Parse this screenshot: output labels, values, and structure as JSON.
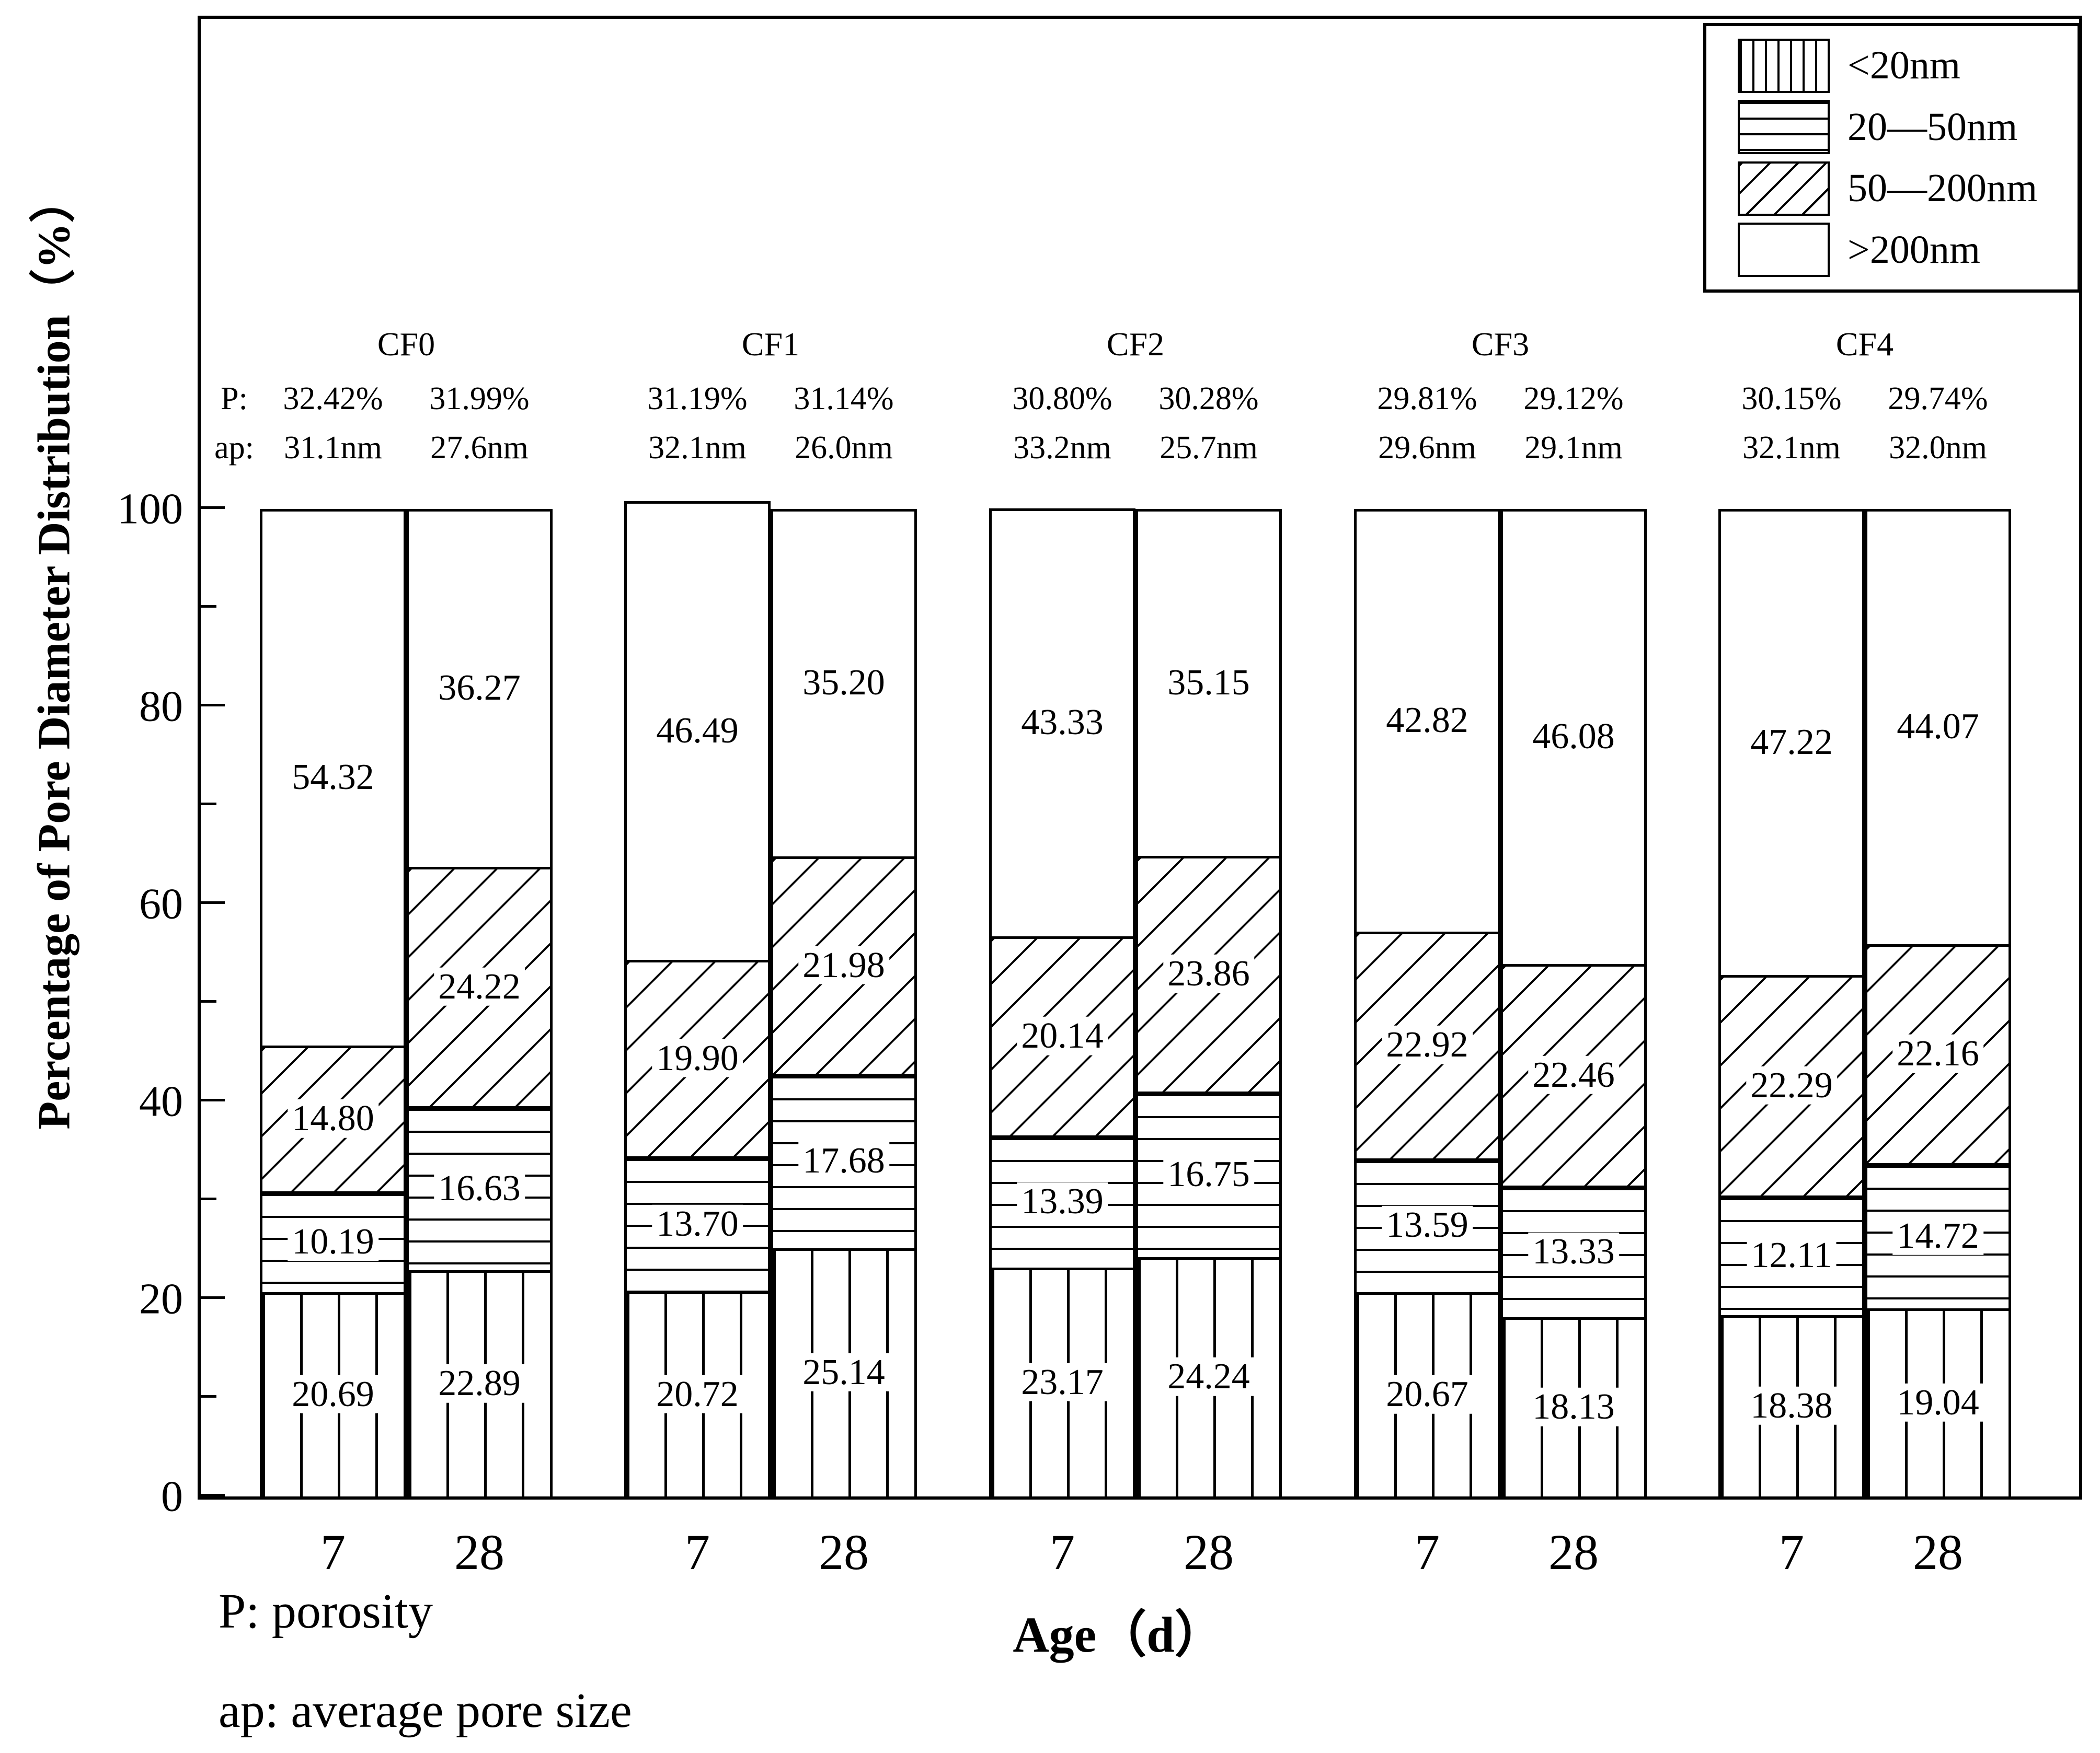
{
  "figure": {
    "colors": {
      "ink": "#000000",
      "background": "#ffffff"
    },
    "y_axis": {
      "title": "Percentage of Pore Diameter Distribution（%）",
      "major_ticks": [
        "0",
        "20",
        "40",
        "60",
        "80",
        "100"
      ],
      "minor_tick_step": 10,
      "min": 0,
      "max": 100
    },
    "x_axis": {
      "title": "Age（d）",
      "categories": [
        "7",
        "28"
      ]
    },
    "legend": [
      {
        "key": "lt20",
        "label": "<20nm",
        "pattern": "vertical-lines"
      },
      {
        "key": "b20_50",
        "label": "20—50nm",
        "pattern": "horizontal-lines"
      },
      {
        "key": "b50_200",
        "label": "50—200nm",
        "pattern": "diagonal-lines"
      },
      {
        "key": "gt200",
        "label": ">200nm",
        "pattern": "plain-white"
      }
    ],
    "annotation_prefixes": {
      "p": "P:",
      "ap": "ap:"
    },
    "footnotes": {
      "p": "P: porosity",
      "ap": "ap: average pore size"
    }
  },
  "chart_data": {
    "type": "bar",
    "stacked": true,
    "grid": false,
    "legend_position": "top-right-inside",
    "ylim": [
      0,
      100
    ],
    "ylabel": "Percentage of Pore Diameter Distribution（%）",
    "xlabel": "Age（d）",
    "categories": [
      "7",
      "28"
    ],
    "bands": [
      "<20nm",
      "20—50nm",
      "50—200nm",
      ">200nm"
    ],
    "groups": [
      {
        "name": "CF0",
        "p": [
          "32.42%",
          "31.99%"
        ],
        "ap": [
          "31.1nm",
          "27.6nm"
        ],
        "bars": [
          {
            "age": "7",
            "segments": [
              "20.69",
              "10.19",
              "14.80",
              "54.32"
            ]
          },
          {
            "age": "28",
            "segments": [
              "22.89",
              "16.63",
              "24.22",
              "36.27"
            ]
          }
        ]
      },
      {
        "name": "CF1",
        "p": [
          "31.19%",
          "31.14%"
        ],
        "ap": [
          "32.1nm",
          "26.0nm"
        ],
        "bars": [
          {
            "age": "7",
            "segments": [
              "20.72",
              "13.70",
              "19.90",
              "46.49"
            ]
          },
          {
            "age": "28",
            "segments": [
              "25.14",
              "17.68",
              "21.98",
              "35.20"
            ]
          }
        ]
      },
      {
        "name": "CF2",
        "p": [
          "30.80%",
          "30.28%"
        ],
        "ap": [
          "33.2nm",
          "25.7nm"
        ],
        "bars": [
          {
            "age": "7",
            "segments": [
              "23.17",
              "13.39",
              "20.14",
              "43.33"
            ]
          },
          {
            "age": "28",
            "segments": [
              "24.24",
              "16.75",
              "23.86",
              "35.15"
            ]
          }
        ]
      },
      {
        "name": "CF3",
        "p": [
          "29.81%",
          "29.12%"
        ],
        "ap": [
          "29.6nm",
          "29.1nm"
        ],
        "bars": [
          {
            "age": "7",
            "segments": [
              "20.67",
              "13.59",
              "22.92",
              "42.82"
            ]
          },
          {
            "age": "28",
            "segments": [
              "18.13",
              "13.33",
              "22.46",
              "46.08"
            ]
          }
        ]
      },
      {
        "name": "CF4",
        "p": [
          "30.15%",
          "29.74%"
        ],
        "ap": [
          "32.1nm",
          "32.0nm"
        ],
        "bars": [
          {
            "age": "7",
            "segments": [
              "18.38",
              "12.11",
              "22.29",
              "47.22"
            ]
          },
          {
            "age": "28",
            "segments": [
              "19.04",
              "14.72",
              "22.16",
              "44.07"
            ]
          }
        ]
      }
    ]
  }
}
